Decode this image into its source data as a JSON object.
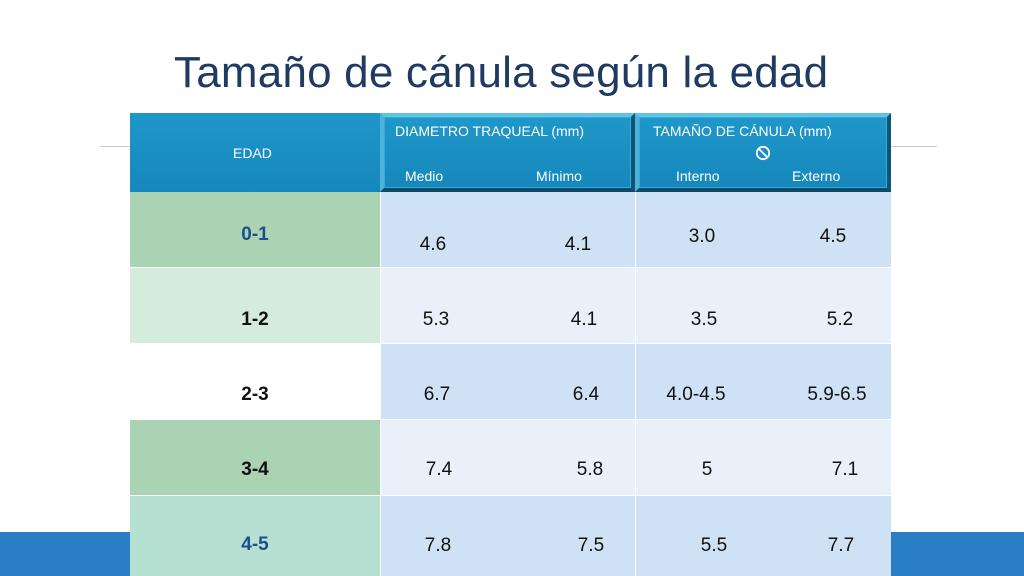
{
  "title": "Tamaño de cánula según la edad",
  "header": {
    "edad": "EDAD",
    "diametro_title": "DIAMETRO TRAQUEAL (mm)",
    "medio": "Medio",
    "minimo": "Mínimo",
    "canula_title": "TAMAÑO DE  CÁNULA (mm)",
    "interno": "Interno",
    "externo": "Externo",
    "symbol_icon": "prohibited-circle-icon"
  },
  "rows": [
    {
      "edad": "0-1",
      "medio": "4.6",
      "minimo": "4.1",
      "interno": "3.0",
      "externo": "4.5"
    },
    {
      "edad": "1-2",
      "medio": "5.3",
      "minimo": "4.1",
      "interno": "3.5",
      "externo": "5.2"
    },
    {
      "edad": "2-3",
      "medio": "6.7",
      "minimo": "6.4",
      "interno": "4.0-4.5",
      "externo": "5.9-6.5"
    },
    {
      "edad": "3-4",
      "medio": "7.4",
      "minimo": "5.8",
      "interno": "5",
      "externo": "7.1"
    },
    {
      "edad": "4-5",
      "medio": "7.8",
      "minimo": "7.5",
      "interno": "5.5",
      "externo": "7.7"
    }
  ],
  "colors": {
    "header_blue": "#1687bc",
    "bottom_bar": "#2a7fc4",
    "title_text": "#1f3b64",
    "age_blue_text": "#1f4e8c"
  }
}
